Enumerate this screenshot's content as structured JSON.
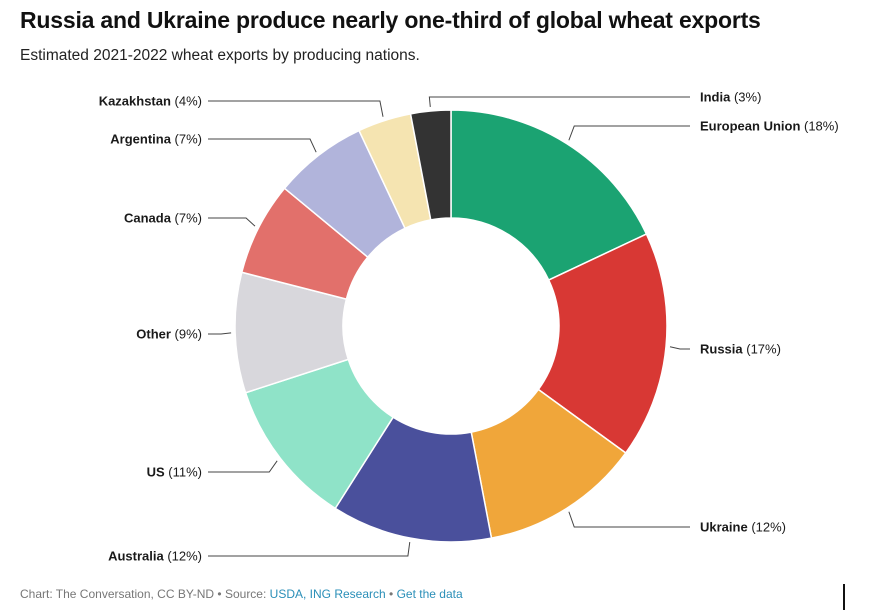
{
  "title": "Russia and Ukraine produce nearly one-third of global wheat exports",
  "subtitle": "Estimated 2021-2022 wheat exports by producing nations.",
  "footer": {
    "prefix": "Chart: The Conversation, CC BY-ND",
    "sep1": " • Source: ",
    "source_link": "USDA, ING Research",
    "sep2": " • ",
    "data_link": "Get the data"
  },
  "chart_data": {
    "type": "pie",
    "donut": true,
    "title": "Russia and Ukraine produce nearly one-third of global wheat exports",
    "subtitle": "Estimated 2021-2022 wheat exports by producing nations.",
    "slices": [
      {
        "name": "European Union",
        "value": 18,
        "label": "(18%)",
        "color": "#1ba372"
      },
      {
        "name": "Russia",
        "value": 17,
        "label": "(17%)",
        "color": "#d83834"
      },
      {
        "name": "Ukraine",
        "value": 12,
        "label": "(12%)",
        "color": "#f0a63a"
      },
      {
        "name": "Australia",
        "value": 12,
        "label": "(12%)",
        "color": "#4a509c"
      },
      {
        "name": "US",
        "value": 11,
        "label": "(11%)",
        "color": "#8fe3c8"
      },
      {
        "name": "Other",
        "value": 9,
        "label": "(9%)",
        "color": "#d8d7dc"
      },
      {
        "name": "Canada",
        "value": 7,
        "label": "(7%)",
        "color": "#e2706b"
      },
      {
        "name": "Argentina",
        "value": 7,
        "label": "(7%)",
        "color": "#b1b4db"
      },
      {
        "name": "Kazakhstan",
        "value": 4,
        "label": "(4%)",
        "color": "#f5e4b1"
      },
      {
        "name": "India",
        "value": 3,
        "label": "(3%)",
        "color": "#333333"
      }
    ]
  }
}
